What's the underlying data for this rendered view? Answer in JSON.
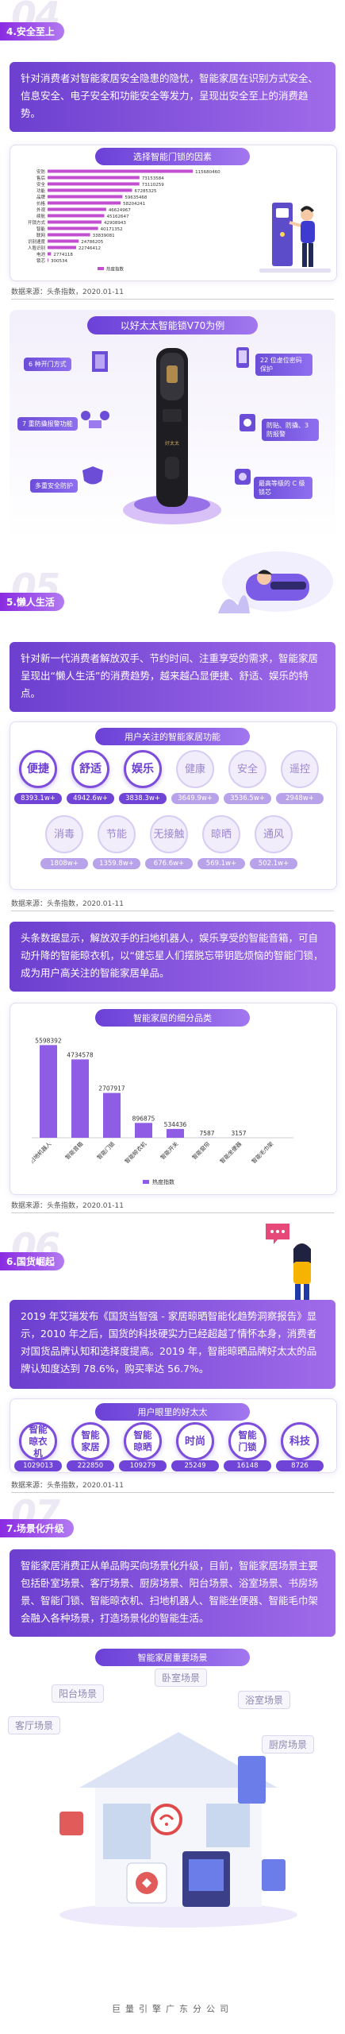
{
  "sections": {
    "s4": {
      "num": "04",
      "title": "4.安全至上",
      "intro": "针对消费者对智能家居安全隐患的隐忧，智能家居在识别方式安全、信息安全、电子安全和功能安全等发力，呈现出安全至上的消费趋势。",
      "chart_title": "选择智能门锁的因素",
      "source": "数据来源：头条指数，2020.01-11"
    },
    "v70": {
      "title": "以好太太智能锁V70为例",
      "features": [
        "6 种开门方式",
        "22 位虚位密码保护",
        "7 重防撬报警功能",
        "防贴、防撬、3 防报警",
        "多重安全防护",
        "最高等级的 C 级锁芯"
      ]
    },
    "s5": {
      "num": "05",
      "title": "5.懒人生活",
      "intro": "针对新一代消费者解放双手、节约时间、注重享受的需求，智能家居呈现出“懒人生活”的消费趋势，越来越凸显便捷、舒适、娱乐的特点。",
      "func_title": "用户关注的智能家居功能",
      "source": "数据来源：头条指数，2020.01-11",
      "para": "头条数据显示，解放双手的扫地机器人，娱乐享受的智能音箱，可自动升降的智能晾衣机，以“健忘星人们摆脱忘带钥匙烦恼的智能门锁，成为用户高关注的智能家居单品。",
      "chart2_title": "智能家居的细分品类",
      "source2": "数据来源：头条指数，2020.01-11"
    },
    "s6": {
      "num": "06",
      "title": "6.国货崛起",
      "intro": "2019 年艾瑞发布《国货当智强 - 家居晾晒智能化趋势洞察报告》显示，2010 年之后，国货的科技硬实力已经超越了情怀本身，消费者对国货品牌认知和选择度提高。2019 年，智能晾晒品牌好太太的品牌认知度达到 78.6%，购买率达 56.7%。",
      "brand_title": "用户眼里的好太太",
      "source": "数据来源：头条指数，2020.01-11"
    },
    "s7": {
      "num": "07",
      "title": "7.场景化升级",
      "intro": "智能家居消费正从单品购买向场景化升级，目前，智能家居场景主要包括卧室场景、客厅场景、厨房场景、阳台场景、浴室场景、书房场景、智能门锁、智能晾衣机、扫地机器人、智能坐便器、智能毛巾架会融入各种场景，打造场景化的智能生活。",
      "scenes_title": "智能家居重要场景",
      "scenes": [
        "阳台场景",
        "卧室场景",
        "浴室场景",
        "客厅场景",
        "厨房场景"
      ]
    }
  },
  "functions": [
    {
      "label": "便捷",
      "value": "8393.1w+",
      "style": "dark"
    },
    {
      "label": "舒适",
      "value": "4942.6w+",
      "style": "dark"
    },
    {
      "label": "娱乐",
      "value": "3838.3w+",
      "style": "dark"
    },
    {
      "label": "健康",
      "value": "3649.9w+",
      "style": "light"
    },
    {
      "label": "安全",
      "value": "3536.5w+",
      "style": "light"
    },
    {
      "label": "遥控",
      "value": "2948w+",
      "style": "light"
    },
    {
      "label": "消毒",
      "value": "1808w+",
      "style": "light"
    },
    {
      "label": "节能",
      "value": "1359.8w+",
      "style": "light"
    },
    {
      "label": "无接触",
      "value": "676.6w+",
      "style": "light"
    },
    {
      "label": "晾晒",
      "value": "569.1w+",
      "style": "light"
    },
    {
      "label": "通风",
      "value": "502.1w+",
      "style": "light"
    }
  ],
  "brand_terms": [
    {
      "label": "智能晾衣机",
      "value": "1029013",
      "style": "dark"
    },
    {
      "label": "智能家居",
      "value": "222850",
      "style": "dark"
    },
    {
      "label": "智能晾晒",
      "value": "109279",
      "style": "dark"
    },
    {
      "label": "时尚",
      "value": "25249",
      "style": "dark"
    },
    {
      "label": "智能门锁",
      "value": "16148",
      "style": "dark"
    },
    {
      "label": "科技",
      "value": "8726",
      "style": "dark"
    }
  ],
  "chart_data": [
    {
      "type": "bar",
      "title": "选择智能门锁的因素",
      "categories": [
        "安防",
        "售后",
        "安全",
        "功能",
        "品牌",
        "价格",
        "外观",
        "续航",
        "开锁方式",
        "智能",
        "联网",
        "识别速度",
        "人脸识别",
        "电池",
        "锁芯"
      ],
      "values": [
        115680460,
        73153584,
        73110259,
        67285325,
        59635468,
        58204241,
        46624967,
        45162647,
        42908943,
        40171352,
        33839081,
        24786205,
        22746412,
        2774118,
        300534
      ],
      "xlim": [
        0,
        120000000
      ],
      "legend": "热度指数",
      "bar_color": "#c24fd0"
    },
    {
      "type": "bar",
      "title": "智能家居的细分品类",
      "categories": [
        "扫地机器人",
        "智能音箱",
        "智能门锁",
        "智能晾衣机",
        "智能开关",
        "智能窗帘",
        "智能坐便器",
        "智能毛巾架"
      ],
      "values": [
        5598392,
        4734578,
        2707917,
        896875,
        534436,
        7587,
        3157,
        0
      ],
      "value_labels": [
        "5598392",
        "4734578",
        "2707917",
        "896875",
        "534436",
        "7587",
        "3157",
        ""
      ],
      "ylim": [
        0,
        6000000
      ],
      "legend": "热度指数",
      "bar_color": "#8f5ce6"
    }
  ],
  "footer": "巨量引擎广东分公司",
  "colors": {
    "accent": "#7d4ddc",
    "accent_light": "#b27af0",
    "bar": "#c24fd0"
  }
}
